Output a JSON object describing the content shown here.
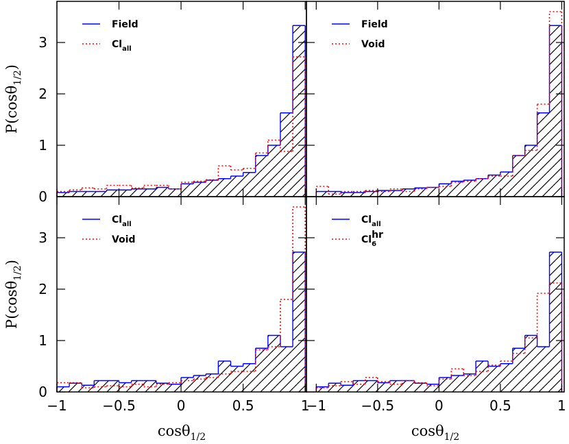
{
  "chart_data": [
    {
      "type": "histogram",
      "bins": [
        -1,
        -0.9,
        -0.8,
        -0.7,
        -0.6,
        -0.5,
        -0.4,
        -0.3,
        -0.2,
        -0.1,
        0,
        0.1,
        0.2,
        0.3,
        0.4,
        0.5,
        0.6,
        0.7,
        0.8,
        0.9,
        1
      ],
      "series": [
        {
          "name": "Field",
          "color": "#0000ff",
          "style": "solid",
          "hatched": true,
          "values": [
            0.08,
            0.1,
            0.1,
            0.1,
            0.13,
            0.13,
            0.15,
            0.15,
            0.18,
            0.15,
            0.25,
            0.28,
            0.32,
            0.35,
            0.4,
            0.47,
            0.8,
            1.0,
            1.63,
            3.33
          ]
        },
        {
          "name": "Cl",
          "name_sub": "all",
          "color": "#ff0000",
          "style": "dotted",
          "values": [
            0.1,
            0.13,
            0.17,
            0.15,
            0.22,
            0.22,
            0.17,
            0.22,
            0.22,
            0.15,
            0.28,
            0.3,
            0.33,
            0.6,
            0.52,
            0.55,
            0.85,
            1.1,
            0.88,
            2.72
          ]
        }
      ],
      "xlim": [
        -1.0,
        1.01
      ],
      "ylim": [
        0,
        3.8
      ],
      "xticks": [
        {
          "value": -1,
          "label": "−1"
        },
        {
          "value": -0.5,
          "label": "−0.5"
        },
        0,
        0.5,
        1
      ],
      "yticks": [
        0,
        1,
        2,
        3
      ],
      "x_tick_labels": false,
      "y_tick_labels": true,
      "ylabel": {
        "text": "P(cosθ",
        "sub": "1/2",
        "tail": ")"
      }
    },
    {
      "type": "histogram",
      "bins": [
        -1,
        -0.9,
        -0.8,
        -0.7,
        -0.6,
        -0.5,
        -0.4,
        -0.3,
        -0.2,
        -0.1,
        0,
        0.1,
        0.2,
        0.3,
        0.4,
        0.5,
        0.6,
        0.7,
        0.8,
        0.9,
        1
      ],
      "series": [
        {
          "name": "Field",
          "color": "#0000ff",
          "style": "solid",
          "hatched": true,
          "values": [
            0.1,
            0.1,
            0.08,
            0.08,
            0.1,
            0.12,
            0.12,
            0.15,
            0.17,
            0.18,
            0.25,
            0.3,
            0.32,
            0.35,
            0.42,
            0.48,
            0.8,
            1.0,
            1.63,
            3.33
          ]
        },
        {
          "name": "Void",
          "color": "#ff0000",
          "style": "dotted",
          "values": [
            0.2,
            0.05,
            0.1,
            0.1,
            0.12,
            0.1,
            0.15,
            0.1,
            0.15,
            0.18,
            0.2,
            0.28,
            0.3,
            0.35,
            0.4,
            0.4,
            0.8,
            0.9,
            1.8,
            3.6
          ]
        }
      ],
      "xlim": [
        -1.08,
        1.02
      ],
      "ylim": [
        0,
        3.8
      ],
      "xticks": [
        {
          "value": -1,
          "label": "−1"
        },
        {
          "value": -0.5,
          "label": "−0.5"
        },
        0,
        0.5,
        1
      ],
      "yticks": [
        0,
        1,
        2,
        3
      ],
      "x_tick_labels": false,
      "y_tick_labels": false
    },
    {
      "type": "histogram",
      "bins": [
        -1,
        -0.9,
        -0.8,
        -0.7,
        -0.6,
        -0.5,
        -0.4,
        -0.3,
        -0.2,
        -0.1,
        0,
        0.1,
        0.2,
        0.3,
        0.4,
        0.5,
        0.6,
        0.7,
        0.8,
        0.9,
        1
      ],
      "series": [
        {
          "name": "Cl",
          "name_sub": "all",
          "color": "#0000ff",
          "style": "solid",
          "hatched": true,
          "values": [
            0.1,
            0.17,
            0.13,
            0.22,
            0.22,
            0.18,
            0.22,
            0.22,
            0.17,
            0.15,
            0.28,
            0.32,
            0.35,
            0.6,
            0.5,
            0.55,
            0.85,
            1.1,
            0.88,
            2.72
          ]
        },
        {
          "name": "Void",
          "color": "#ff0000",
          "style": "dotted",
          "values": [
            0.18,
            0.18,
            0.08,
            0.1,
            0.12,
            0.1,
            0.15,
            0.1,
            0.15,
            0.18,
            0.22,
            0.25,
            0.28,
            0.35,
            0.4,
            0.4,
            0.82,
            0.88,
            1.8,
            3.6
          ]
        }
      ],
      "xlim": [
        -1.0,
        1.01
      ],
      "ylim": [
        0,
        3.8
      ],
      "xticks": [
        {
          "value": -1,
          "label": "−1"
        },
        {
          "value": -0.5,
          "label": "−0.5"
        },
        0,
        0.5,
        1
      ],
      "yticks": [
        0,
        1,
        2,
        3
      ],
      "x_tick_labels": true,
      "y_tick_labels": true,
      "xlabel": {
        "text": "cosθ",
        "sub": "1/2"
      },
      "ylabel": {
        "text": "P(cosθ",
        "sub": "1/2",
        "tail": ")"
      }
    },
    {
      "type": "histogram",
      "bins": [
        -1,
        -0.9,
        -0.8,
        -0.7,
        -0.6,
        -0.5,
        -0.4,
        -0.3,
        -0.2,
        -0.1,
        0,
        0.1,
        0.2,
        0.3,
        0.4,
        0.5,
        0.6,
        0.7,
        0.8,
        0.9,
        1
      ],
      "series": [
        {
          "name": "Cl",
          "name_sub": "all",
          "color": "#0000ff",
          "style": "solid",
          "hatched": true,
          "values": [
            0.1,
            0.17,
            0.13,
            0.22,
            0.22,
            0.18,
            0.22,
            0.22,
            0.17,
            0.15,
            0.28,
            0.32,
            0.35,
            0.6,
            0.5,
            0.55,
            0.85,
            1.1,
            0.88,
            2.72
          ]
        },
        {
          "name": "Cl",
          "name_sub": "6",
          "name_sup": "hr",
          "color": "#ff0000",
          "style": "dotted",
          "values": [
            0.08,
            0.12,
            0.2,
            0.15,
            0.28,
            0.2,
            0.15,
            0.22,
            0.18,
            0.12,
            0.25,
            0.45,
            0.32,
            0.4,
            0.52,
            0.6,
            0.75,
            1.05,
            1.92,
            2.12
          ]
        }
      ],
      "xlim": [
        -1.08,
        1.02
      ],
      "ylim": [
        0,
        3.8
      ],
      "xticks": [
        {
          "value": -1,
          "label": "−1"
        },
        {
          "value": -0.5,
          "label": "−0.5"
        },
        0,
        0.5,
        1
      ],
      "yticks": [
        0,
        1,
        2,
        3
      ],
      "x_tick_labels": true,
      "y_tick_labels": false,
      "xlabel": {
        "text": "cosθ",
        "sub": "1/2"
      }
    }
  ]
}
